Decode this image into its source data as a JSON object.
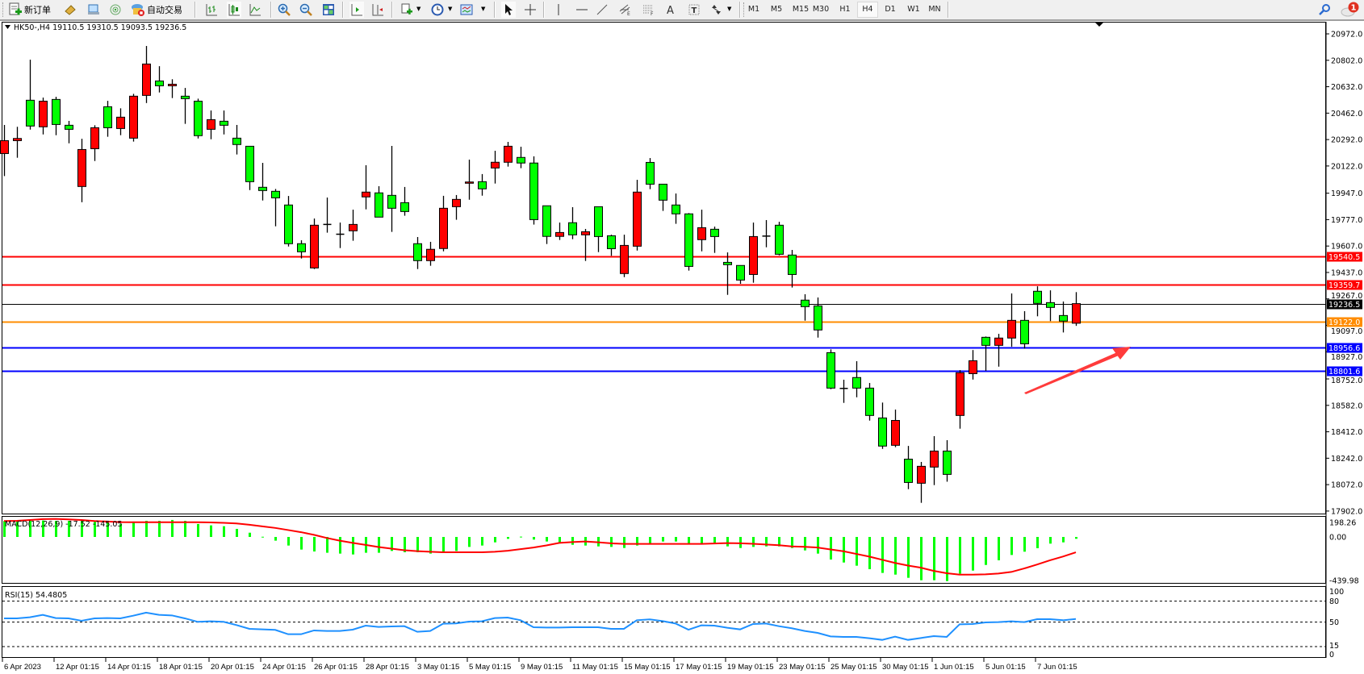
{
  "toolbar": {
    "new_order_label": "新订单",
    "auto_trading_label": "自动交易",
    "timeframes": [
      "M1",
      "M5",
      "M15",
      "M30",
      "H1",
      "H4",
      "D1",
      "W1",
      "MN"
    ],
    "active_timeframe": "H4",
    "notification_count": "1"
  },
  "chart": {
    "header": "HK50-,H4  19110.5 19310.5 19093.5 19236.5",
    "colors": {
      "bull": "#ff0000",
      "bear": "#00ff00",
      "outline": "#000000"
    },
    "price_labels": [
      "20972.0",
      "20802.0",
      "20632.0",
      "20462.0",
      "20292.0",
      "20122.0",
      "19947.0",
      "19777.0",
      "19607.0",
      "19437.0",
      "19267.0",
      "19097.0",
      "18927.0",
      "18752.0",
      "18582.0",
      "18412.0",
      "18242.0",
      "18072.0",
      "17902.0"
    ],
    "lines": [
      {
        "price": 19540.5,
        "label": "19540.5",
        "color": "#ff0000"
      },
      {
        "price": 19359.7,
        "label": "19359.7",
        "color": "#ff0000"
      },
      {
        "price": 19236.5,
        "label": "19236.5",
        "color": "#000000"
      },
      {
        "price": 19122.0,
        "label": "19122.0",
        "color": "#ff8c00"
      },
      {
        "price": 18956.6,
        "label": "18956.6",
        "color": "#0000ff"
      },
      {
        "price": 18801.6,
        "label": "18801.6",
        "color": "#0000ff"
      }
    ],
    "arrow_color": "#ff3b3b",
    "date_labels": [
      "6 Apr 2023",
      "12 Apr 01:15",
      "14 Apr 01:15",
      "18 Apr 01:15",
      "20 Apr 01:15",
      "24 Apr 01:15",
      "26 Apr 01:15",
      "28 Apr 01:15",
      "3 May 01:15",
      "5 May 01:15",
      "9 May 01:15",
      "11 May 01:15",
      "15 May 01:15",
      "17 May 01:15",
      "19 May 01:15",
      "23 May 01:15",
      "25 May 01:15",
      "30 May 01:15",
      "1 Jun 01:15",
      "5 Jun 01:15",
      "7 Jun 01:15"
    ],
    "candles_ohlc": [
      [
        20202,
        20386,
        20057,
        20285
      ],
      [
        20285,
        20374,
        20175,
        20299
      ],
      [
        20545,
        20806,
        20356,
        20379
      ],
      [
        20374,
        20562,
        20325,
        20539
      ],
      [
        20550,
        20567,
        20320,
        20389
      ],
      [
        20384,
        20412,
        20268,
        20358
      ],
      [
        19990,
        20297,
        19889,
        20228
      ],
      [
        20233,
        20384,
        20154,
        20368
      ],
      [
        20503,
        20541,
        20310,
        20368
      ],
      [
        20363,
        20493,
        20320,
        20436
      ],
      [
        20301,
        20586,
        20279,
        20571
      ],
      [
        20576,
        20894,
        20527,
        20778
      ],
      [
        20669,
        20764,
        20595,
        20638
      ],
      [
        20638,
        20680,
        20559,
        20648
      ],
      [
        20571,
        20624,
        20393,
        20555
      ],
      [
        20539,
        20555,
        20299,
        20317
      ],
      [
        20358,
        20479,
        20294,
        20420
      ],
      [
        20410,
        20479,
        20325,
        20384
      ],
      [
        20301,
        20386,
        20196,
        20260
      ],
      [
        20249,
        20249,
        19967,
        20021
      ],
      [
        19985,
        20142,
        19900,
        19964
      ],
      [
        19959,
        19974,
        19734,
        19917
      ],
      [
        19871,
        19929,
        19604,
        19622
      ],
      [
        19622,
        19644,
        19527,
        19570
      ],
      [
        19466,
        19784,
        19459,
        19741
      ],
      [
        19746,
        19919,
        19693,
        19744
      ],
      [
        19683,
        19758,
        19594,
        19681
      ],
      [
        19705,
        19841,
        19641,
        19746
      ],
      [
        19923,
        20127,
        19843,
        19954
      ],
      [
        19949,
        19992,
        19793,
        19793
      ],
      [
        19933,
        20251,
        19698,
        19850
      ],
      [
        19886,
        19987,
        19802,
        19829
      ],
      [
        19622,
        19665,
        19459,
        19513
      ],
      [
        19513,
        19634,
        19480,
        19586
      ],
      [
        19591,
        19930,
        19573,
        19850
      ],
      [
        19860,
        19935,
        19776,
        19907
      ],
      [
        20011,
        20163,
        19905,
        20019
      ],
      [
        20021,
        20070,
        19931,
        19975
      ],
      [
        20109,
        20220,
        20009,
        20146
      ],
      [
        20146,
        20277,
        20118,
        20249
      ],
      [
        20177,
        20246,
        20108,
        20141
      ],
      [
        20141,
        20184,
        19745,
        19777
      ],
      [
        19866,
        19866,
        19620,
        19669
      ],
      [
        19669,
        19758,
        19646,
        19694
      ],
      [
        19757,
        19857,
        19651,
        19679
      ],
      [
        19679,
        19717,
        19511,
        19699
      ],
      [
        19860,
        19860,
        19568,
        19668
      ],
      [
        19673,
        19680,
        19544,
        19590
      ],
      [
        19430,
        19680,
        19407,
        19611
      ],
      [
        19606,
        20033,
        19578,
        19954
      ],
      [
        20145,
        20173,
        19973,
        20005
      ],
      [
        20005,
        20005,
        19833,
        19902
      ],
      [
        19871,
        19945,
        19750,
        19814
      ],
      [
        19814,
        19819,
        19449,
        19476
      ],
      [
        19648,
        19841,
        19573,
        19725
      ],
      [
        19715,
        19732,
        19563,
        19668
      ],
      [
        19502,
        19566,
        19293,
        19487
      ],
      [
        19482,
        19482,
        19364,
        19388
      ],
      [
        19424,
        19758,
        19371,
        19668
      ],
      [
        19671,
        19774,
        19599,
        19669
      ],
      [
        19741,
        19763,
        19547,
        19554
      ],
      [
        19549,
        19582,
        19340,
        19424
      ],
      [
        19259,
        19297,
        19127,
        19217
      ],
      [
        19222,
        19276,
        19018,
        19067
      ],
      [
        18921,
        18942,
        18686,
        18693
      ],
      [
        18691,
        18747,
        18598,
        18689
      ],
      [
        18761,
        18866,
        18634,
        18693
      ],
      [
        18693,
        18726,
        18484,
        18517
      ],
      [
        18501,
        18600,
        18302,
        18320
      ],
      [
        18325,
        18555,
        18313,
        18485
      ],
      [
        18236,
        18321,
        18043,
        18086
      ],
      [
        18081,
        18218,
        17955,
        18190
      ],
      [
        18185,
        18384,
        18069,
        18288
      ],
      [
        18288,
        18358,
        18091,
        18138
      ],
      [
        18517,
        18809,
        18432,
        18792
      ],
      [
        18786,
        18938,
        18748,
        18869
      ],
      [
        19020,
        19025,
        18804,
        18968
      ],
      [
        18968,
        19042,
        18831,
        19015
      ],
      [
        19015,
        19302,
        18959,
        19129
      ],
      [
        19129,
        19188,
        18947,
        18978
      ],
      [
        19316,
        19348,
        19155,
        19238
      ],
      [
        19243,
        19322,
        19124,
        19212
      ],
      [
        19160,
        19250,
        19051,
        19124
      ],
      [
        19110.5,
        19310.5,
        19093.5,
        19236.5
      ]
    ]
  },
  "macd": {
    "label": "MACD(12,26,9) -17.52 -145.05",
    "axis_labels": [
      "198.26",
      "0.00",
      "-439.98"
    ],
    "range": [
      -439.98,
      198.26
    ],
    "hist_color": "#00ff00",
    "signal_color": "#ff0000",
    "main": [
      150,
      150,
      152,
      155,
      152,
      152,
      152,
      150,
      150,
      122,
      145,
      152,
      152,
      160,
      152,
      122,
      109,
      101,
      76,
      40,
      2,
      -35,
      -81,
      -119,
      -137,
      -149,
      -157,
      -165,
      -149,
      -149,
      -132,
      -144,
      -144,
      -157,
      -144,
      -132,
      -94,
      -81,
      -51,
      -18,
      3,
      -25,
      -43,
      -51,
      -74,
      -81,
      -89,
      -94,
      -104,
      -81,
      -61,
      -43,
      -43,
      -61,
      -61,
      -61,
      -89,
      -104,
      -94,
      -89,
      -89,
      -104,
      -127,
      -157,
      -213,
      -241,
      -271,
      -304,
      -339,
      -355,
      -385,
      -408,
      -408,
      -416,
      -347,
      -317,
      -264,
      -220,
      -170,
      -139,
      -106,
      -63,
      -51,
      -17.52
    ],
    "signal": [
      150,
      152,
      160,
      168,
      170,
      165,
      160,
      150,
      145,
      140,
      139,
      139,
      139,
      139,
      139,
      139,
      137,
      133,
      127,
      115,
      100,
      85,
      65,
      45,
      20,
      -10,
      -35,
      -56,
      -75,
      -95,
      -110,
      -125,
      -134,
      -140,
      -144,
      -144,
      -144,
      -144,
      -140,
      -130,
      -115,
      -100,
      -80,
      -56,
      -48,
      -43,
      -50,
      -60,
      -66,
      -66,
      -66,
      -66,
      -66,
      -66,
      -66,
      -62,
      -58,
      -60,
      -65,
      -71,
      -78,
      -89,
      -93,
      -100,
      -118,
      -135,
      -160,
      -185,
      -215,
      -245,
      -270,
      -290,
      -320,
      -342,
      -355,
      -355,
      -352,
      -345,
      -330,
      -297,
      -260,
      -220,
      -185,
      -145.05
    ]
  },
  "rsi": {
    "label": "RSI(15) 54.4805",
    "axis_labels": [
      "100",
      "80",
      "50",
      "15",
      "0"
    ],
    "levels": [
      80,
      50,
      15
    ],
    "color": "#1e90ff",
    "values": [
      55.4,
      55.4,
      57,
      60.4,
      55.8,
      55.4,
      51.9,
      55.4,
      55.8,
      55.4,
      59.2,
      63.5,
      60.4,
      59.6,
      55.4,
      50.4,
      51.2,
      50.4,
      45.8,
      40.4,
      39.6,
      38.9,
      32.7,
      32.7,
      38.1,
      37.3,
      37.3,
      39.2,
      45,
      43.1,
      43.9,
      44.2,
      36.2,
      37.3,
      47.7,
      48.1,
      50.8,
      51.2,
      55.8,
      56.5,
      52.7,
      42.7,
      42.3,
      42.3,
      42.7,
      42.7,
      42.7,
      40.4,
      40.4,
      52.7,
      53.9,
      51.5,
      48,
      39.2,
      45.4,
      45,
      41.9,
      39.6,
      47.3,
      48,
      44.2,
      41.2,
      37.3,
      34.6,
      29.6,
      28.9,
      28.9,
      26.9,
      24.6,
      29.3,
      24.6,
      27.3,
      30,
      28.9,
      46.9,
      47.3,
      49.6,
      50,
      51.2,
      50,
      54.2,
      54.2,
      52.7,
      54.4805
    ]
  }
}
